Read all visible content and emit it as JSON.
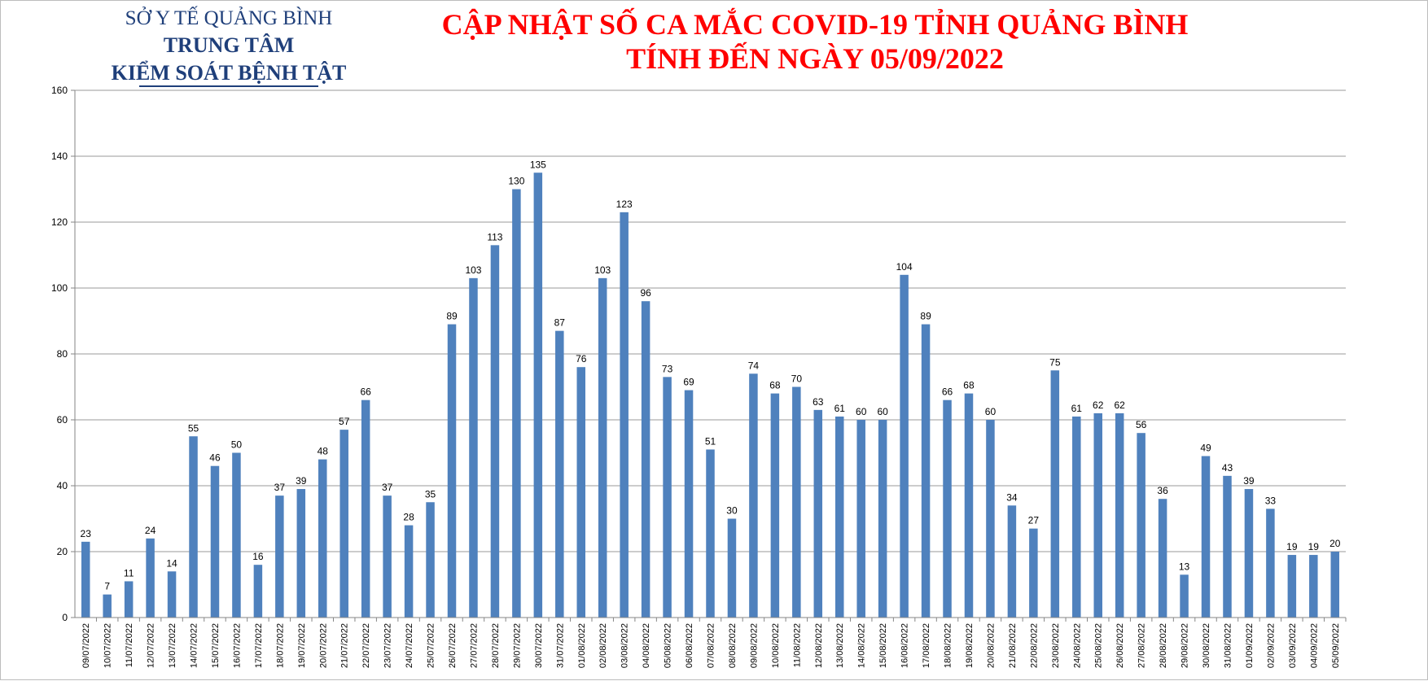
{
  "header": {
    "org_line1": "SỞ Y TẾ QUẢNG BÌNH",
    "org_line2": "TRUNG TÂM",
    "org_line3": "KIỂM SOÁT BỆNH TẬT",
    "title_line1": "CẬP NHẬT SỐ CA MẮC COVID-19 TỈNH QUẢNG BÌNH",
    "title_line2": "TÍNH ĐẾN NGÀY 05/09/2022"
  },
  "colors": {
    "bar": "#4f81bd",
    "title": "#ff0000",
    "org": "#1f3f7a",
    "grid": "#999999"
  },
  "chart_data": {
    "type": "bar",
    "title": "CẬP NHẬT SỐ CA MẮC COVID-19 TỈNH QUẢNG BÌNH TÍNH ĐẾN NGÀY 05/09/2022",
    "xlabel": "",
    "ylabel": "",
    "ylim": [
      0,
      160
    ],
    "yticks": [
      0,
      20,
      40,
      60,
      80,
      100,
      120,
      140,
      160
    ],
    "grid": true,
    "legend": "none",
    "data_labels": true,
    "categories": [
      "09/07/2022",
      "10/07/2022",
      "11/07/2022",
      "12/07/2022",
      "13/07/2022",
      "14/07/2022",
      "15/07/2022",
      "16/07/2022",
      "17/07/2022",
      "18/07/2022",
      "19/07/2022",
      "20/07/2022",
      "21/07/2022",
      "22/07/2022",
      "23/07/2022",
      "24/07/2022",
      "25/07/2022",
      "26/07/2022",
      "27/07/2022",
      "28/07/2022",
      "29/07/2022",
      "30/07/2022",
      "31/07/2022",
      "01/08/2022",
      "02/08/2022",
      "03/08/2022",
      "04/08/2022",
      "05/08/2022",
      "06/08/2022",
      "07/08/2022",
      "08/08/2022",
      "09/08/2022",
      "10/08/2022",
      "11/08/2022",
      "12/08/2022",
      "13/08/2022",
      "14/08/2022",
      "15/08/2022",
      "16/08/2022",
      "17/08/2022",
      "18/08/2022",
      "19/08/2022",
      "20/08/2022",
      "21/08/2022",
      "22/08/2022",
      "23/08/2022",
      "24/08/2022",
      "25/08/2022",
      "26/08/2022",
      "27/08/2022",
      "28/08/2022",
      "29/08/2022",
      "30/08/2022",
      "31/08/2022",
      "01/09/2022",
      "02/09/2022",
      "03/09/2022",
      "04/09/2022",
      "05/09/2022"
    ],
    "values": [
      23,
      7,
      11,
      24,
      14,
      55,
      46,
      50,
      16,
      37,
      39,
      48,
      57,
      66,
      37,
      28,
      35,
      89,
      103,
      113,
      130,
      135,
      87,
      76,
      103,
      123,
      96,
      73,
      69,
      51,
      30,
      74,
      68,
      70,
      63,
      61,
      60,
      60,
      104,
      89,
      66,
      68,
      60,
      34,
      27,
      75,
      61,
      62,
      62,
      56,
      36,
      13,
      49,
      43,
      39,
      33,
      19,
      19,
      20
    ]
  }
}
